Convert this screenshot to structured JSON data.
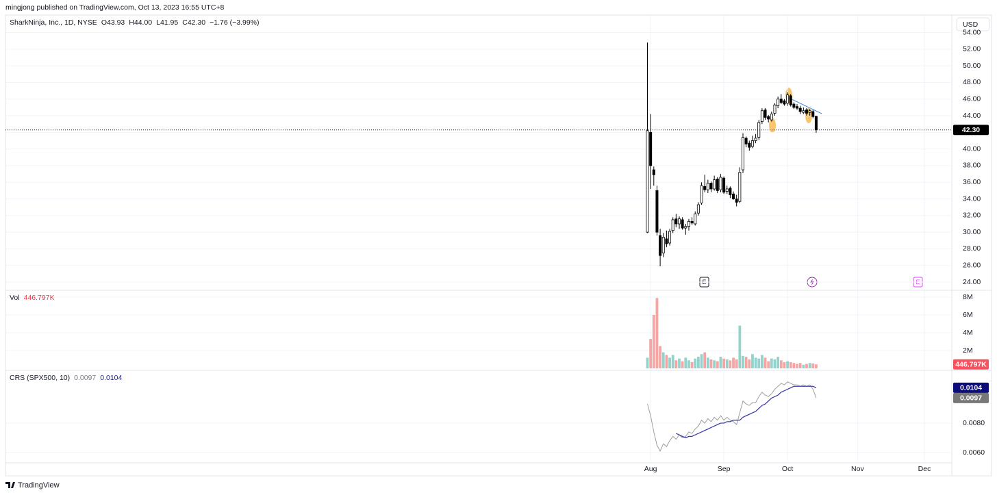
{
  "header": {
    "publisher": "mingjong published on TradingView.com, Oct 13, 2023 16:55 UTC+8",
    "symbol": "SharkNinja, Inc., 1D, NYSE",
    "open": "O43.93",
    "high": "H44.00",
    "low": "L41.95",
    "close": "C42.30",
    "change": "−1.76 (−3.99%)"
  },
  "currency": "USD",
  "footer": "TradingView",
  "events": [
    "E",
    "E"
  ],
  "chart_data": [
    {
      "type": "candlestick",
      "xlim": [
        -201.2,
        95.6
      ],
      "ylim": [
        23.1,
        56.1
      ],
      "grid": true,
      "up_color": "#ffffff",
      "down_color": "#000000",
      "border_color": "#000000",
      "open": [
        30.0,
        42.0,
        37.5,
        35.0,
        29.6,
        27.5,
        29.2,
        28.7,
        30.2,
        31.6,
        31.0,
        31.5,
        30.5,
        30.7,
        31.3,
        31.0,
        32.3,
        33.5,
        35.5,
        35.1,
        35.9,
        35.2,
        36.4,
        35.1,
        36.5,
        34.9,
        35.3,
        34.6,
        34.0,
        33.7,
        37.5,
        41.3,
        40.7,
        40.3,
        41.0,
        41.4,
        43.3,
        44.7,
        43.9,
        43.5,
        44.3,
        45.2,
        46.0,
        45.8,
        45.5,
        46.4,
        45.4,
        45.1,
        44.9,
        44.4,
        44.7,
        44.4,
        44.5,
        43.93
      ],
      "high": [
        52.8,
        44.2,
        37.9,
        35.6,
        30.4,
        29.9,
        30.2,
        30.4,
        31.8,
        32.2,
        31.9,
        31.8,
        31.0,
        31.6,
        31.8,
        32.5,
        33.6,
        36.0,
        36.9,
        36.3,
        36.1,
        36.8,
        36.6,
        37.0,
        36.7,
        35.6,
        35.5,
        34.9,
        34.5,
        37.8,
        41.9,
        41.5,
        41.0,
        41.6,
        41.8,
        43.5,
        44.9,
        44.9,
        44.1,
        44.5,
        45.5,
        46.3,
        46.6,
        46.0,
        46.8,
        46.6,
        45.6,
        45.4,
        45.2,
        45.0,
        44.9,
        44.8,
        44.7,
        44.0
      ],
      "low": [
        29.9,
        35.2,
        35.6,
        29.6,
        25.9,
        27.0,
        28.2,
        28.4,
        29.9,
        30.6,
        30.4,
        30.3,
        29.7,
        30.2,
        30.9,
        30.8,
        32.0,
        33.3,
        34.8,
        34.7,
        34.8,
        35.0,
        34.7,
        34.8,
        34.6,
        34.6,
        34.1,
        33.9,
        33.1,
        33.5,
        37.1,
        40.2,
        39.8,
        40.1,
        40.7,
        41.1,
        43.0,
        43.5,
        43.2,
        43.3,
        44.0,
        44.9,
        45.4,
        45.2,
        45.2,
        45.1,
        44.8,
        44.7,
        44.2,
        44.2,
        44.0,
        44.0,
        43.7,
        41.95
      ],
      "close": [
        42.2,
        38.0,
        36.9,
        30.0,
        27.2,
        29.4,
        28.6,
        30.1,
        31.5,
        31.0,
        31.6,
        30.5,
        30.7,
        31.3,
        31.1,
        32.2,
        33.3,
        35.6,
        35.1,
        35.9,
        35.2,
        36.3,
        35.0,
        36.6,
        34.8,
        35.2,
        34.5,
        34.0,
        33.6,
        37.2,
        41.4,
        40.6,
        40.2,
        41.0,
        41.3,
        43.2,
        44.6,
        43.8,
        43.6,
        44.2,
        45.3,
        46.0,
        45.6,
        45.4,
        46.5,
        45.3,
        45.0,
        44.9,
        44.5,
        44.6,
        44.3,
        44.6,
        43.9,
        42.3
      ],
      "last_value": {
        "value": 42.3,
        "label": "42.30"
      },
      "yticks": [
        {
          "value": 24,
          "label": "24.00"
        },
        {
          "value": 26,
          "label": "26.00"
        },
        {
          "value": 28,
          "label": "28.00"
        },
        {
          "value": 30,
          "label": "30.00"
        },
        {
          "value": 32,
          "label": "32.00"
        },
        {
          "value": 34,
          "label": "34.00"
        },
        {
          "value": 36,
          "label": "36.00"
        },
        {
          "value": 38,
          "label": "38.00"
        },
        {
          "value": 40,
          "label": "40.00"
        },
        {
          "value": 42,
          "label": "42.00"
        },
        {
          "value": 44,
          "label": "44.00"
        },
        {
          "value": 46,
          "label": "46.00"
        },
        {
          "value": 48,
          "label": "48.00"
        },
        {
          "value": 50,
          "label": "50.00"
        },
        {
          "value": 52,
          "label": "52.00"
        },
        {
          "value": 54,
          "label": "54.00"
        }
      ]
    },
    {
      "type": "bar",
      "title": "Vol",
      "xlim": [
        -201.2,
        95.6
      ],
      "ylim": [
        -154000,
        8690000
      ],
      "grid": true,
      "up_color": "#93d3cb",
      "down_color": "#f5a6a4",
      "label_color": "#f7525f",
      "values": [
        1200000,
        3300000,
        6000000,
        7900000,
        2500000,
        1800000,
        1500000,
        1200000,
        1500000,
        900000,
        1100000,
        800000,
        1200000,
        900000,
        700000,
        1100000,
        1300000,
        1600000,
        1800000,
        1200000,
        1000000,
        900000,
        800000,
        1300000,
        1100000,
        1000000,
        900000,
        1200000,
        1000000,
        4800000,
        1400000,
        1300000,
        1000000,
        1600000,
        1200000,
        1100000,
        1500000,
        1200000,
        800000,
        1100000,
        1000000,
        1300000,
        900000,
        700000,
        800000,
        700000,
        600000,
        500000,
        600000,
        400000,
        500000,
        600000,
        550000,
        446797
      ],
      "last_value": {
        "value": 446797,
        "label": "446.797K"
      },
      "yticks": [
        {
          "value": 2000000,
          "label": "2M"
        },
        {
          "value": 4000000,
          "label": "4M"
        },
        {
          "value": 6000000,
          "label": "6M"
        },
        {
          "value": 8000000,
          "label": "8M"
        }
      ]
    },
    {
      "type": "line",
      "title": "CRS (SPX500, 10)",
      "xlim": [
        -201.2,
        95.6
      ],
      "ylim": [
        0.00535,
        0.01158
      ],
      "grid": true,
      "xticks": [
        {
          "value": 1,
          "label": "Aug"
        },
        {
          "value": 24,
          "label": "Sep"
        },
        {
          "value": 44,
          "label": "Oct"
        },
        {
          "value": 66,
          "label": "Nov"
        },
        {
          "value": 87,
          "label": "Dec"
        }
      ],
      "yticks": [
        {
          "value": 0.006,
          "label": "0.0060"
        },
        {
          "value": 0.008,
          "label": "0.0080"
        }
      ],
      "series": [
        {
          "color": "#9e9e9e",
          "label_color": "#787878",
          "last_label": "0.0097",
          "values": [
            0.0093,
            0.0085,
            0.0074,
            0.0065,
            0.0061,
            0.0066,
            0.0064,
            0.0068,
            0.0071,
            0.0069,
            0.0072,
            0.007,
            0.0071,
            0.0074,
            0.0073,
            0.0076,
            0.0078,
            0.0082,
            0.008,
            0.0083,
            0.0081,
            0.0084,
            0.0082,
            0.0085,
            0.0082,
            0.0084,
            0.0082,
            0.0081,
            0.0079,
            0.0087,
            0.0095,
            0.0093,
            0.0092,
            0.0094,
            0.0094,
            0.0098,
            0.0101,
            0.0099,
            0.0098,
            0.01,
            0.0103,
            0.0105,
            0.0107,
            0.0106,
            0.0108,
            0.0107,
            0.0106,
            0.0106,
            0.0105,
            0.0106,
            0.0105,
            0.0106,
            0.0103,
            0.0097
          ]
        },
        {
          "color": "#3f3fa8",
          "label_color": "#0c0c7a",
          "last_label": "0.0104",
          "values": [
            null,
            null,
            null,
            null,
            null,
            null,
            null,
            null,
            null,
            0.0073,
            0.0072,
            0.0071,
            0.007,
            0.0071,
            0.0071,
            0.0072,
            0.0073,
            0.0074,
            0.0075,
            0.0076,
            0.0077,
            0.0078,
            0.0079,
            0.008,
            0.008,
            0.0081,
            0.0081,
            0.0082,
            0.0082,
            0.0082,
            0.0084,
            0.0085,
            0.0086,
            0.0087,
            0.0088,
            0.009,
            0.0092,
            0.0093,
            0.0095,
            0.0097,
            0.0098,
            0.0099,
            0.0101,
            0.0102,
            0.0103,
            0.0104,
            0.0105,
            0.0105,
            0.0105,
            0.0105,
            0.0105,
            0.0105,
            0.0105,
            0.0104
          ]
        }
      ]
    }
  ]
}
